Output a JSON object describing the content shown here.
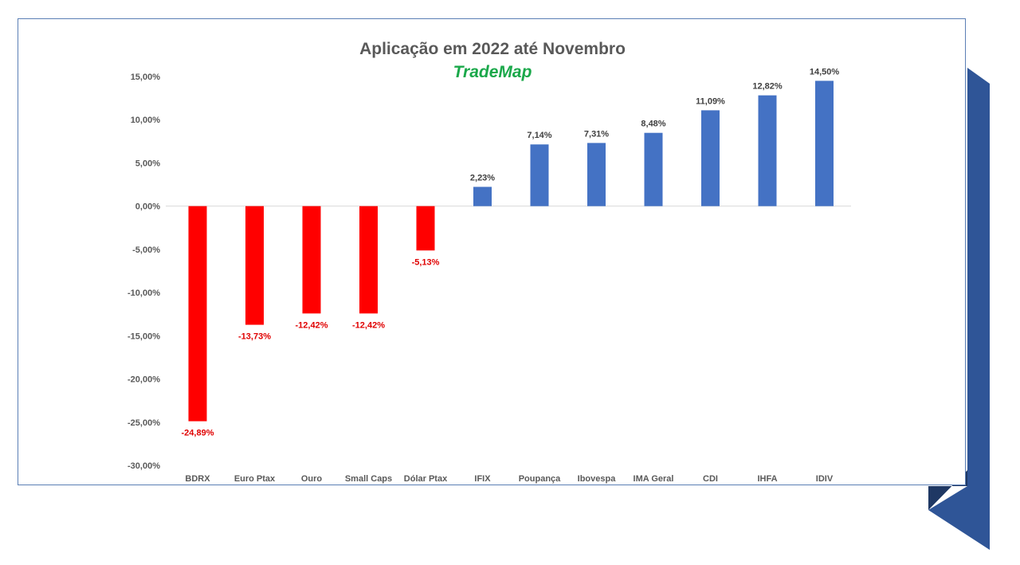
{
  "colors": {
    "positive": "#4472c4",
    "negative": "#ff0000",
    "positive_label": "#404040",
    "negative_label": "#e00000",
    "axis_text": "#595959",
    "ribbon": "#2f5597",
    "ribbon_dark": "#1f3864",
    "subtitle": "#1aa84a"
  },
  "chart_data": {
    "type": "bar",
    "title": "Aplicação em 2022 até Novembro",
    "subtitle": "TradeMap",
    "categories": [
      "BDRX",
      "Euro Ptax",
      "Ouro",
      "Small Caps",
      "Dólar Ptax",
      "IFIX",
      "Poupança",
      "Ibovespa",
      "IMA Geral",
      "CDI",
      "IHFA",
      "IDIV"
    ],
    "values": [
      -24.89,
      -13.73,
      -12.42,
      -12.42,
      -5.13,
      2.23,
      7.14,
      7.31,
      8.48,
      11.09,
      12.82,
      14.5
    ],
    "data_labels": [
      "-24,89%",
      "-13,73%",
      "-12,42%",
      "-12,42%",
      "-5,13%",
      "2,23%",
      "7,14%",
      "7,31%",
      "8,48%",
      "11,09%",
      "12,82%",
      "14,50%"
    ],
    "ylim": [
      -30,
      15
    ],
    "yticks": [
      15,
      10,
      5,
      0,
      -5,
      -10,
      -15,
      -20,
      -25,
      -30
    ],
    "ytick_labels": [
      "15,00%",
      "10,00%",
      "5,00%",
      "0,00%",
      "-5,00%",
      "-10,00%",
      "-15,00%",
      "-20,00%",
      "-25,00%",
      "-30,00%"
    ],
    "xlabel": "",
    "ylabel": "",
    "grid": false,
    "legend": "none"
  }
}
